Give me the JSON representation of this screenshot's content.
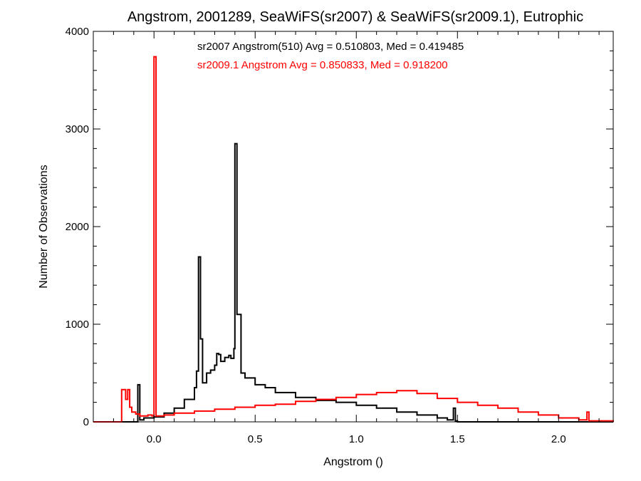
{
  "chart_data": {
    "type": "line",
    "title": "Angstrom, 2001289, SeaWiFS(sr2007) & SeaWiFS(sr2009.1), Eutrophic",
    "xlabel": "Angstrom ()",
    "ylabel": "Number of Observations",
    "xlim": [
      -0.3,
      2.27
    ],
    "ylim": [
      0,
      4000
    ],
    "x_ticks": [
      0.0,
      0.5,
      1.0,
      1.5,
      2.0
    ],
    "x_tick_labels": [
      "0.0",
      "0.5",
      "1.0",
      "1.5",
      "2.0"
    ],
    "y_ticks": [
      0,
      1000,
      2000,
      3000,
      4000
    ],
    "y_tick_labels": [
      "0",
      "1000",
      "2000",
      "3000",
      "4000"
    ],
    "grid": false,
    "series": [
      {
        "name": "sr2007",
        "color": "#000000",
        "x": [
          -0.3,
          -0.09,
          -0.08,
          -0.07,
          -0.05,
          0.0,
          0.05,
          0.1,
          0.15,
          0.2,
          0.21,
          0.22,
          0.23,
          0.24,
          0.26,
          0.28,
          0.3,
          0.31,
          0.32,
          0.33,
          0.35,
          0.37,
          0.38,
          0.395,
          0.4,
          0.41,
          0.43,
          0.45,
          0.5,
          0.55,
          0.6,
          0.7,
          0.8,
          0.9,
          1.0,
          1.1,
          1.2,
          1.3,
          1.4,
          1.45,
          1.47,
          1.48,
          1.49,
          1.5,
          2.27
        ],
        "y": [
          0,
          0,
          380,
          20,
          40,
          50,
          90,
          140,
          230,
          350,
          520,
          1690,
          850,
          400,
          500,
          530,
          580,
          700,
          690,
          620,
          660,
          680,
          650,
          750,
          2850,
          1100,
          500,
          450,
          380,
          350,
          300,
          250,
          220,
          200,
          170,
          140,
          100,
          70,
          40,
          20,
          20,
          140,
          10,
          0,
          0
        ]
      },
      {
        "name": "sr2009.1",
        "color": "#ff0000",
        "x": [
          -0.3,
          -0.165,
          -0.16,
          -0.14,
          -0.13,
          -0.12,
          -0.11,
          -0.09,
          -0.07,
          -0.03,
          -0.01,
          0.0,
          0.01,
          0.05,
          0.1,
          0.2,
          0.3,
          0.4,
          0.5,
          0.6,
          0.7,
          0.8,
          0.9,
          1.0,
          1.1,
          1.2,
          1.3,
          1.4,
          1.5,
          1.6,
          1.7,
          1.8,
          1.9,
          2.0,
          2.1,
          2.13,
          2.14,
          2.15,
          2.27
        ],
        "y": [
          0,
          0,
          330,
          230,
          330,
          150,
          100,
          80,
          60,
          70,
          60,
          3740,
          60,
          70,
          90,
          110,
          130,
          150,
          170,
          180,
          210,
          230,
          250,
          280,
          300,
          320,
          290,
          240,
          200,
          170,
          140,
          100,
          70,
          40,
          20,
          20,
          100,
          10,
          0
        ]
      }
    ],
    "annotations": [
      {
        "text": "sr2007 Angstrom(510) Avg = 0.510803, Med = 0.419485",
        "color": "#000000"
      },
      {
        "text": "sr2009.1 Angstrom Avg = 0.850833, Med = 0.918200",
        "color": "#ff0000"
      }
    ]
  }
}
